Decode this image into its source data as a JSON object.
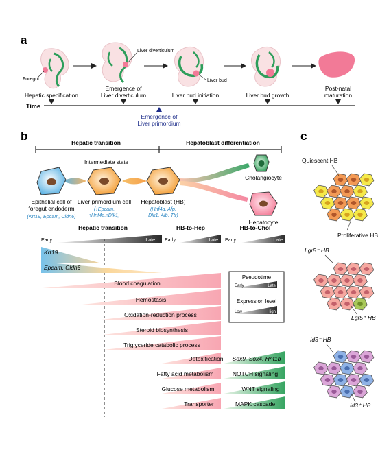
{
  "panel_a": {
    "letter": "a",
    "time_label": "Time",
    "foregut": "Foregut",
    "liver_diverticulum": "Liver diverticulum",
    "liver_bud": "Liver bud",
    "stages": [
      "Hepatic specification",
      "Emergence of",
      "Liver diverticulum",
      "Liver bud initiation",
      "Liver bud growth",
      "Post-natal",
      "maturation"
    ],
    "primordium": [
      "Emergence of",
      "Liver primordium"
    ]
  },
  "panel_b": {
    "letter": "b",
    "hepatic_transition": "Hepatic transition",
    "hepatoblast_differentiation": "Hepatoblast differentiation",
    "intermediate_state": "Intermediate state",
    "cells": {
      "epithelial": [
        "Epithelial cell of",
        "foregut endoderm"
      ],
      "epithelial_markers": "(Krt19, Epcam, Cldn6)",
      "primordium_cell": "Liver primordium cell",
      "primordium_markers": [
        "(↓Epcam,",
        "↑Hnf4a,↑Dlk1)"
      ],
      "hepatoblast": "Hepatoblast (HB)",
      "hepatoblast_markers": [
        "(Hnf4a, Afp,",
        "Dlk1, Alb, Ttr)"
      ],
      "cholangiocyte": "Cholangiocyte",
      "hepatocyte": "Hepatocyte"
    },
    "header": {
      "hepatic_transition": "Hepatic transition",
      "hb_to_hep": "HB-to-Hep",
      "hb_to_chol": "HB-to-Chol",
      "early": "Early",
      "late": "Late"
    },
    "wedges_early": [
      "Krt19",
      "Epcam, Cldn6"
    ],
    "processes": [
      "Blood coagulation",
      "Hemostasis",
      "Oxidation-reduction process",
      "Steroid biosynthesis",
      "Triglyceride catabolic process"
    ],
    "hep_processes": [
      "Detoxification",
      "Fatty acid metabolism",
      "Glucose metabolism",
      "Transporter"
    ],
    "chol_processes": [
      "Sox9, Sox4, Hnf1b",
      "NOTCH signaling",
      "WNT signaling",
      "MAPK cascade"
    ],
    "legend": {
      "pseudotime": "Pseudotime",
      "early": "Early",
      "late": "Late",
      "expression": "Expression level",
      "low": "Low",
      "high": "High"
    }
  },
  "panel_c": {
    "letter": "c",
    "quiescent": "Quiescent HB",
    "proliferative": "Proliferative HB",
    "lgr5_neg": "Lgr5⁻ HB",
    "lgr5_pos": "Lgr5⁺ HB",
    "id3_neg": "Id3⁻ HB",
    "id3_pos": "Id3⁺ HB"
  },
  "colors": {
    "green": "#2e9e5b",
    "pink": "#f27a97",
    "blue": "#5fb3e0",
    "orange": "#f4a23a",
    "navy": "#1d2d8a"
  }
}
